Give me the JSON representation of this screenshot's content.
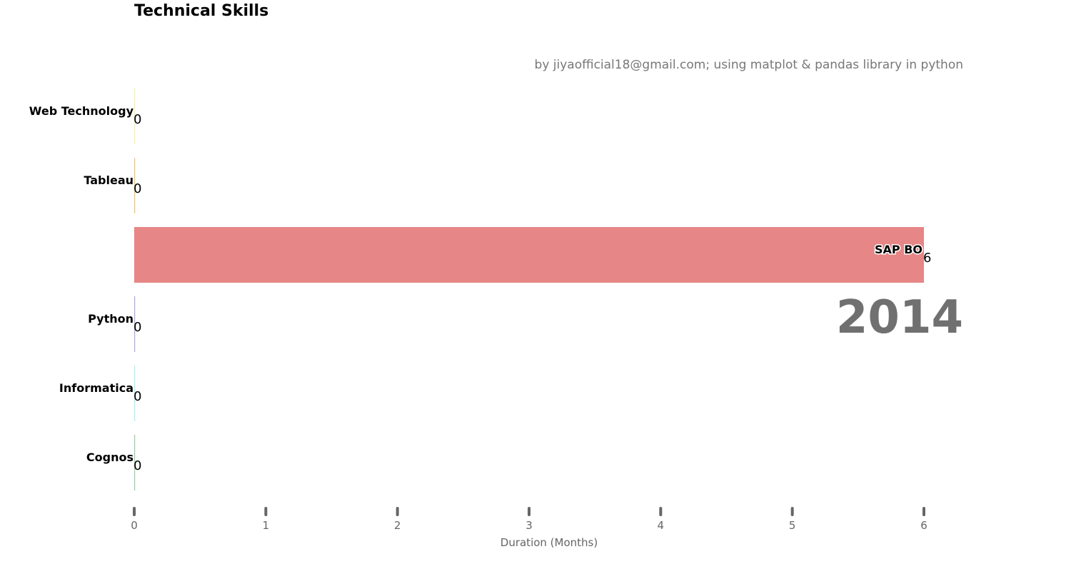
{
  "chart_data": {
    "type": "bar",
    "orientation": "horizontal",
    "title": "Technical Skills",
    "subtitle": "by jiyaofficial18@gmail.com; using  matplot & pandas library in python",
    "xlabel": "Duration (Months)",
    "ylabel": "",
    "year": "2014",
    "xlim": [
      0,
      6
    ],
    "xticks": [
      "0",
      "1",
      "2",
      "3",
      "4",
      "5",
      "6"
    ],
    "grid": false,
    "legend": "none",
    "categories": [
      "Web Technology",
      "Tableau",
      "SAP BO",
      "Python",
      "Informatica",
      "Cognos"
    ],
    "values": [
      0,
      0,
      6,
      0,
      0,
      0
    ],
    "value_labels": [
      "0",
      "0",
      "6",
      "0",
      "0",
      "0"
    ],
    "colors": [
      "#f0f0a0",
      "#f0c060",
      "#e58080",
      "#b0a0e0",
      "#a0f0f0",
      "#90d090"
    ]
  }
}
